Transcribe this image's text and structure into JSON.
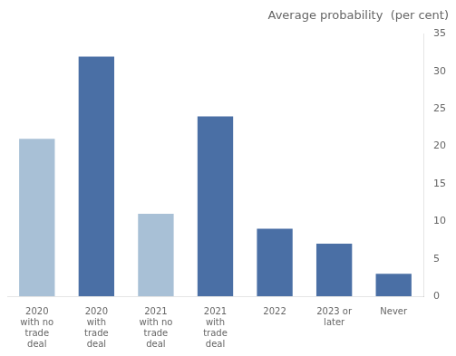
{
  "chart_data": {
    "type": "bar",
    "title": "Average probability  (per cent)",
    "categories": [
      "2020\nwith no\ntrade\ndeal",
      "2020\nwith\ntrade\ndeal",
      "2021\nwith no\ntrade\ndeal",
      "2021\nwith\ntrade\ndeal",
      "2022",
      "2023 or\nlater",
      "Never"
    ],
    "values": [
      21,
      32,
      11,
      24,
      9,
      7,
      3
    ],
    "colors": [
      "#a8c0d6",
      "#4a6fa5",
      "#a8c0d6",
      "#4a6fa5",
      "#4a6fa5",
      "#4a6fa5",
      "#4a6fa5"
    ],
    "ylim": [
      0,
      35
    ],
    "yticks": [
      0,
      5,
      10,
      15,
      20,
      25,
      30,
      35
    ],
    "grid": false
  }
}
